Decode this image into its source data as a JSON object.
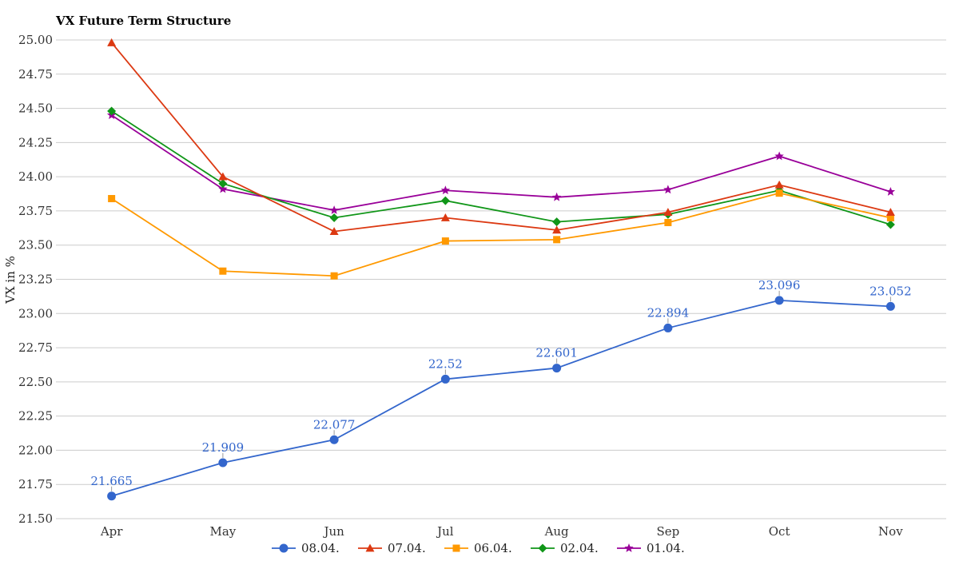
{
  "chart_data": {
    "type": "line",
    "title": "VX Future Term Structure",
    "xlabel": "",
    "ylabel": "VX in %",
    "categories": [
      "Apr",
      "May",
      "Jun",
      "Jul",
      "Aug",
      "Sep",
      "Oct",
      "Nov"
    ],
    "ylim": [
      21.5,
      25.0
    ],
    "yticks": [
      "21.50",
      "21.75",
      "22.00",
      "22.25",
      "22.50",
      "22.75",
      "23.00",
      "23.25",
      "23.50",
      "23.75",
      "24.00",
      "24.25",
      "24.50",
      "24.75",
      "25.00"
    ],
    "grid": true,
    "legend_position": "bottom",
    "series": [
      {
        "name": "08.04.",
        "color": "#3366cc",
        "marker": "circle",
        "values": [
          21.665,
          21.909,
          22.077,
          22.52,
          22.601,
          22.894,
          23.096,
          23.052
        ],
        "labels": [
          "21.665",
          "21.909",
          "22.077",
          "22.52",
          "22.601",
          "22.894",
          "23.096",
          "23.052"
        ]
      },
      {
        "name": "07.04.",
        "color": "#dc3912",
        "marker": "triangle",
        "values": [
          24.98,
          24.0,
          23.6,
          23.7,
          23.61,
          23.74,
          23.94,
          23.74
        ]
      },
      {
        "name": "06.04.",
        "color": "#ff9900",
        "marker": "square",
        "values": [
          23.84,
          23.31,
          23.275,
          23.53,
          23.54,
          23.665,
          23.88,
          23.7
        ]
      },
      {
        "name": "02.04.",
        "color": "#109618",
        "marker": "diamond",
        "values": [
          24.48,
          23.95,
          23.7,
          23.825,
          23.67,
          23.725,
          23.9,
          23.65
        ]
      },
      {
        "name": "01.04.",
        "color": "#990099",
        "marker": "star",
        "values": [
          24.45,
          23.91,
          23.755,
          23.9,
          23.85,
          23.905,
          24.15,
          23.89
        ]
      }
    ]
  }
}
